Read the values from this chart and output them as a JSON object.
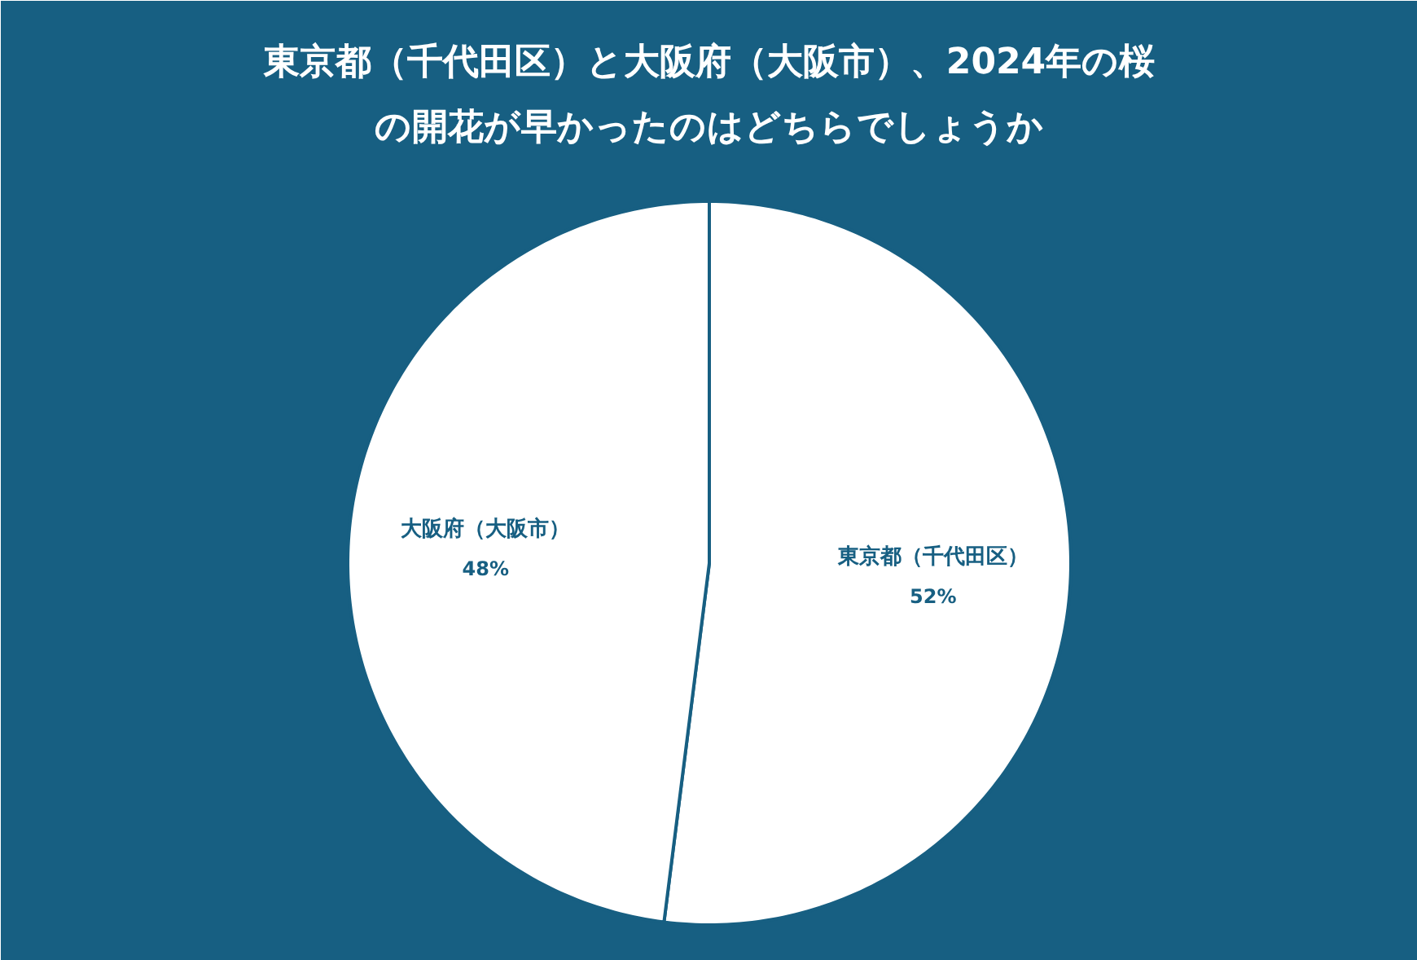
{
  "chart_data": {
    "type": "pie",
    "title": "東京都（千代田区）と大阪府（大阪市）、2024年の桜の開花が早かったのはどちらでしょうか",
    "categories": [
      "東京都（千代田区）",
      "大阪府（大阪市）"
    ],
    "values": [
      52,
      48
    ],
    "colors": [
      "#ffffff",
      "#ffffff"
    ],
    "value_labels": [
      "52%",
      "48%"
    ]
  }
}
